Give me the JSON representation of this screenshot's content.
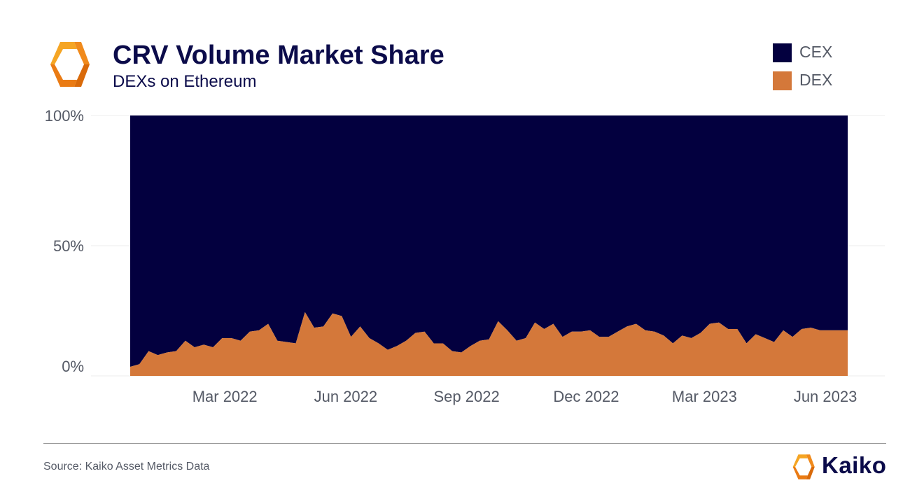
{
  "header": {
    "title": "CRV Volume Market Share",
    "subtitle": "DEXs on Ethereum"
  },
  "footer": {
    "source": "Source: Kaiko Asset Metrics Data",
    "brand": "Kaiko"
  },
  "logo": {
    "icon": "kaiko-logo-icon",
    "color": "#f08a1c"
  },
  "colors": {
    "cex": "#03003f",
    "dex": "#d4783a",
    "text": "#0b0b4a",
    "axis_text": "#555a66"
  },
  "chart_data": {
    "type": "area",
    "stacked": true,
    "normalized": true,
    "grid": true,
    "legend_position": "top-right",
    "ylim": [
      0,
      100
    ],
    "y_ticks": [
      {
        "value": 0,
        "label": "0%"
      },
      {
        "value": 50,
        "label": "50%"
      },
      {
        "value": 100,
        "label": "100%"
      }
    ],
    "x_range": [
      "2021-12-19",
      "2023-06-18"
    ],
    "x_ticks": [
      {
        "date": "2022-03-01",
        "label": "Mar 2022"
      },
      {
        "date": "2022-06-01",
        "label": "Jun 2022"
      },
      {
        "date": "2022-09-01",
        "label": "Sep 2022"
      },
      {
        "date": "2022-12-01",
        "label": "Dec 2022"
      },
      {
        "date": "2023-03-01",
        "label": "Mar 2023"
      },
      {
        "date": "2023-06-01",
        "label": "Jun 2023"
      }
    ],
    "legend": [
      {
        "name": "CEX",
        "color": "#03003f"
      },
      {
        "name": "DEX",
        "color": "#d4783a"
      }
    ],
    "x": [
      "2021-12-19",
      "2021-12-26",
      "2022-01-02",
      "2022-01-09",
      "2022-01-16",
      "2022-01-23",
      "2022-01-30",
      "2022-02-06",
      "2022-02-13",
      "2022-02-20",
      "2022-02-27",
      "2022-03-06",
      "2022-03-13",
      "2022-03-20",
      "2022-03-27",
      "2022-04-03",
      "2022-04-10",
      "2022-04-17",
      "2022-04-24",
      "2022-05-01",
      "2022-05-08",
      "2022-05-15",
      "2022-05-22",
      "2022-05-29",
      "2022-06-05",
      "2022-06-12",
      "2022-06-19",
      "2022-06-26",
      "2022-07-03",
      "2022-07-10",
      "2022-07-17",
      "2022-07-24",
      "2022-07-31",
      "2022-08-07",
      "2022-08-14",
      "2022-08-21",
      "2022-08-28",
      "2022-09-04",
      "2022-09-11",
      "2022-09-18",
      "2022-09-25",
      "2022-10-02",
      "2022-10-09",
      "2022-10-16",
      "2022-10-23",
      "2022-10-30",
      "2022-11-06",
      "2022-11-13",
      "2022-11-20",
      "2022-11-27",
      "2022-12-04",
      "2022-12-11",
      "2022-12-18",
      "2022-12-25",
      "2023-01-01",
      "2023-01-08",
      "2023-01-15",
      "2023-01-22",
      "2023-01-29",
      "2023-02-05",
      "2023-02-12",
      "2023-02-19",
      "2023-02-26",
      "2023-03-05",
      "2023-03-12",
      "2023-03-19",
      "2023-03-26",
      "2023-04-02",
      "2023-04-09",
      "2023-04-16",
      "2023-04-23",
      "2023-04-30",
      "2023-05-07",
      "2023-05-14",
      "2023-05-21",
      "2023-05-28",
      "2023-06-04",
      "2023-06-11",
      "2023-06-18"
    ],
    "series": [
      {
        "name": "DEX",
        "values": [
          3.5,
          4.5,
          9.5,
          8,
          9,
          9.5,
          13.5,
          11,
          12,
          11,
          14.5,
          14.5,
          13.5,
          17,
          17.5,
          20,
          13.5,
          13,
          12.5,
          24.5,
          18.5,
          19,
          24,
          23,
          15,
          19,
          14.5,
          12.5,
          10,
          11.5,
          13.5,
          16.5,
          17,
          12.5,
          12.5,
          9.5,
          9,
          11.5,
          13.5,
          14,
          21,
          17.5,
          13.5,
          14.5,
          20.5,
          18,
          20,
          15,
          17,
          17,
          17.5,
          15,
          15,
          17,
          19,
          20,
          17.5,
          17,
          15.5,
          12.5,
          15.5,
          14.5,
          16.5,
          20,
          20.5,
          18,
          18,
          12.5,
          16,
          14.5,
          13,
          17.5,
          15,
          18,
          18.5,
          17.5,
          17.5,
          17.5,
          17.5
        ]
      },
      {
        "name": "CEX",
        "values": [
          96.5,
          95.5,
          90.5,
          92,
          91,
          90.5,
          86.5,
          89,
          88,
          89,
          85.5,
          85.5,
          86.5,
          83,
          82.5,
          80,
          86.5,
          87,
          87.5,
          75.5,
          81.5,
          81,
          76,
          77,
          85,
          81,
          85.5,
          87.5,
          90,
          88.5,
          86.5,
          83.5,
          83,
          87.5,
          87.5,
          90.5,
          91,
          88.5,
          86.5,
          86,
          79,
          82.5,
          86.5,
          85.5,
          79.5,
          82,
          80,
          85,
          83,
          83,
          82.5,
          85,
          85,
          83,
          81,
          80,
          82.5,
          83,
          84.5,
          87.5,
          84.5,
          85.5,
          83.5,
          80,
          79.5,
          82,
          82,
          87.5,
          84,
          85.5,
          87,
          82.5,
          85,
          82,
          81.5,
          82.5,
          82.5,
          82.5,
          82.5
        ]
      }
    ]
  }
}
